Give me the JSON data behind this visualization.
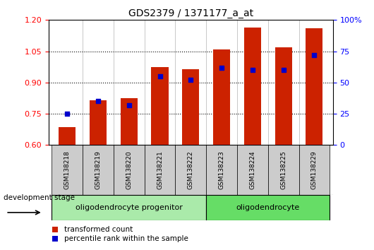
{
  "title": "GDS2379 / 1371177_a_at",
  "samples": [
    "GSM138218",
    "GSM138219",
    "GSM138220",
    "GSM138221",
    "GSM138222",
    "GSM138223",
    "GSM138224",
    "GSM138225",
    "GSM138229"
  ],
  "red_values": [
    0.685,
    0.815,
    0.825,
    0.975,
    0.965,
    1.06,
    1.165,
    1.07,
    1.16
  ],
  "blue_values": [
    25,
    35,
    32,
    55,
    52,
    62,
    60,
    60,
    72
  ],
  "ylim_left": [
    0.6,
    1.2
  ],
  "ylim_right": [
    0,
    100
  ],
  "yticks_left": [
    0.6,
    0.75,
    0.9,
    1.05,
    1.2
  ],
  "yticks_right": [
    0,
    25,
    50,
    75,
    100
  ],
  "ytick_labels_right": [
    "0",
    "25",
    "50",
    "75",
    "100%"
  ],
  "bar_color": "#cc2200",
  "dot_color": "#0000cc",
  "groups": [
    {
      "label": "oligodendrocyte progenitor",
      "start": 0,
      "end": 4,
      "color": "#aaeaaa"
    },
    {
      "label": "oligodendrocyte",
      "start": 5,
      "end": 8,
      "color": "#66dd66"
    }
  ],
  "dev_stage_label": "development stage",
  "legend_bar": "transformed count",
  "legend_dot": "percentile rank within the sample",
  "bar_width": 0.55
}
